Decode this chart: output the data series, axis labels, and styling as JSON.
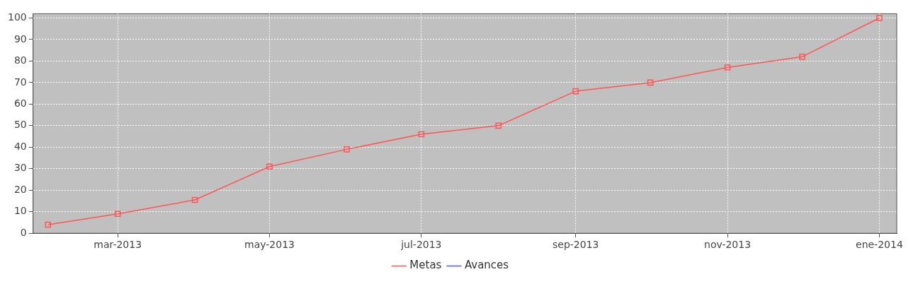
{
  "chart_data": {
    "type": "line",
    "x": [
      "2013-02-01",
      "2013-03-01",
      "2013-04-01",
      "2013-05-01",
      "2013-06-01",
      "2013-07-01",
      "2013-08-01",
      "2013-09-01",
      "2013-10-01",
      "2013-11-01",
      "2013-12-01",
      "2014-01-01"
    ],
    "series": [
      {
        "name": "Metas",
        "color": "#ff5555",
        "values": [
          4,
          9,
          15.5,
          31,
          39,
          46,
          50,
          66,
          70,
          77,
          82,
          100
        ]
      },
      {
        "name": "Avances",
        "color": "#5555ff",
        "values": [
          null,
          null,
          null,
          null,
          null,
          null,
          null,
          null,
          null,
          null,
          null,
          null
        ]
      }
    ],
    "xlim": [
      "2013-01-26",
      "2014-01-08"
    ],
    "xticks": [
      {
        "value": "2013-03-01",
        "label": "mar-2013"
      },
      {
        "value": "2013-05-01",
        "label": "may-2013"
      },
      {
        "value": "2013-07-01",
        "label": "jul-2013"
      },
      {
        "value": "2013-09-01",
        "label": "sep-2013"
      },
      {
        "value": "2013-11-01",
        "label": "nov-2013"
      },
      {
        "value": "2014-01-01",
        "label": "ene-2014"
      }
    ],
    "ylim": [
      0,
      102
    ],
    "yticks": [
      0,
      10,
      20,
      30,
      40,
      50,
      60,
      70,
      80,
      90,
      100
    ],
    "grid": true,
    "legend": "bottom",
    "marker": "square",
    "line_style": "solid"
  }
}
